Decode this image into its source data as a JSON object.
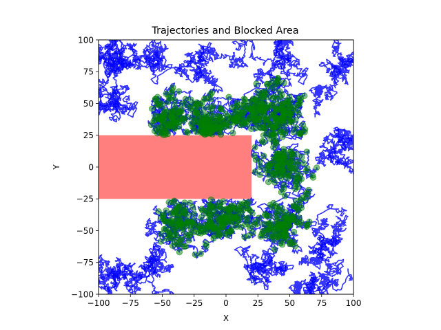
{
  "chart_data": {
    "type": "scatter",
    "title": "Trajectories and Blocked Area",
    "xlabel": "X",
    "ylabel": "Y",
    "xlim": [
      -100,
      100
    ],
    "ylim": [
      -100,
      100
    ],
    "xticks": [
      -100,
      -75,
      -50,
      -25,
      0,
      25,
      50,
      75,
      100
    ],
    "yticks": [
      -100,
      -75,
      -50,
      -25,
      0,
      25,
      50,
      75,
      100
    ],
    "xtick_labels": [
      "−100",
      "−75",
      "−50",
      "−25",
      "0",
      "25",
      "50",
      "75",
      "100"
    ],
    "ytick_labels": [
      "−100",
      "−75",
      "−50",
      "−25",
      "0",
      "25",
      "50",
      "75",
      "100"
    ],
    "grid": false,
    "blocked_area": {
      "x": [
        -100,
        20
      ],
      "y": [
        -25,
        25
      ],
      "color": "#ff0000",
      "alpha": 0.5
    },
    "trajectory_color": "#0000ff",
    "point_color": "#008000",
    "point_alpha": 0.5
  }
}
